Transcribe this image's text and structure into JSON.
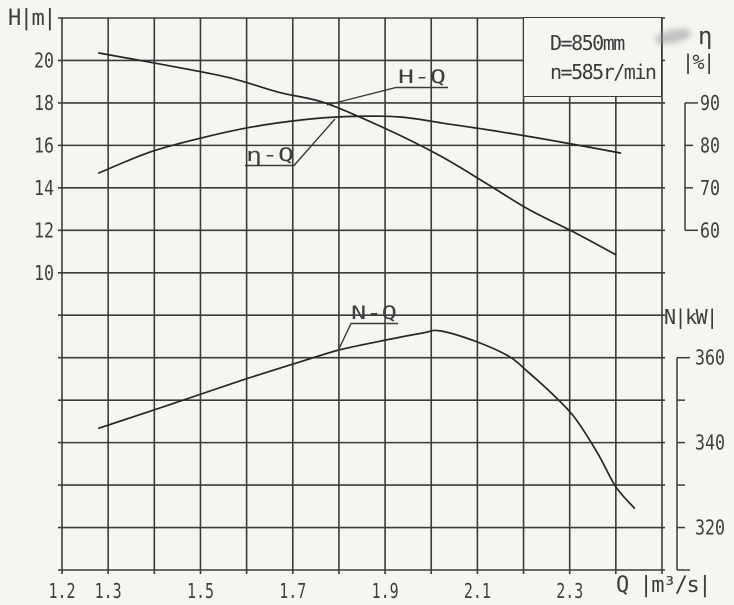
{
  "page": {
    "background": "#f6f5f2"
  },
  "axis_labels": {
    "head": "H|m|",
    "efficiency_symbol": "η",
    "efficiency_units": "|%|",
    "power": "N|kW|",
    "flow": "Q |m³/s|"
  },
  "annotation_box": {
    "line1": "D=850mm",
    "line2": "n=585r/min"
  },
  "colors": {
    "grid": "#3b3b3b",
    "curve": "#262626",
    "text": "#3f3f3f",
    "background": "#f6f5f2"
  },
  "chart_data": {
    "type": "line",
    "title": "",
    "xlabel": "Q [m³/s]",
    "x_range": [
      1.2,
      2.5
    ],
    "x_grid_step": 0.1,
    "x_tick_labels": [
      "1.2",
      "1.3",
      "1.5",
      "1.7",
      "1.9",
      "2.1",
      "2.3"
    ],
    "grid": true,
    "legend": "labels-on-chart",
    "y_axes": [
      {
        "id": "H",
        "label": "H [m]",
        "side": "left",
        "tick_labels": [
          "20",
          "18",
          "16",
          "14",
          "12",
          "10"
        ],
        "grid_step_value": 2
      },
      {
        "id": "eta",
        "label": "η [%]",
        "side": "right",
        "tick_labels": [
          "90",
          "80",
          "70",
          "60"
        ],
        "grid_step_value": 10
      },
      {
        "id": "N",
        "label": "N [kW]",
        "side": "right",
        "tick_labels": [
          "360",
          "340",
          "320"
        ],
        "grid_step_value": 10
      }
    ],
    "series": [
      {
        "name": "H-Q",
        "axis": "H",
        "points": [
          [
            1.28,
            20.35
          ],
          [
            1.42,
            19.8
          ],
          [
            1.56,
            19.2
          ],
          [
            1.67,
            18.5
          ],
          [
            1.77,
            18.0
          ],
          [
            1.9,
            16.8
          ],
          [
            2.02,
            15.5
          ],
          [
            2.12,
            14.2
          ],
          [
            2.21,
            13.0
          ],
          [
            2.31,
            11.9
          ],
          [
            2.4,
            10.85
          ]
        ]
      },
      {
        "name": "η-Q",
        "axis": "eta",
        "points": [
          [
            1.28,
            73.5
          ],
          [
            1.39,
            78.4
          ],
          [
            1.5,
            81.7
          ],
          [
            1.61,
            84.3
          ],
          [
            1.72,
            86.0
          ],
          [
            1.82,
            86.8
          ],
          [
            1.93,
            86.7
          ],
          [
            2.04,
            85.0
          ],
          [
            2.15,
            83.2
          ],
          [
            2.28,
            80.8
          ],
          [
            2.41,
            78.2
          ]
        ]
      },
      {
        "name": "N-Q",
        "axis": "N",
        "points": [
          [
            1.28,
            343.4
          ],
          [
            1.43,
            348.8
          ],
          [
            1.59,
            354.7
          ],
          [
            1.73,
            359.5
          ],
          [
            1.8,
            361.8
          ],
          [
            1.89,
            363.9
          ],
          [
            1.98,
            365.8
          ],
          [
            2.02,
            366.3
          ],
          [
            2.1,
            363.7
          ],
          [
            2.17,
            360.2
          ],
          [
            2.21,
            356.6
          ],
          [
            2.26,
            351.7
          ],
          [
            2.31,
            346.0
          ],
          [
            2.36,
            337.6
          ],
          [
            2.4,
            329.6
          ],
          [
            2.44,
            324.6
          ]
        ]
      }
    ],
    "annotations": [
      "D=850mm",
      "n=585r/min"
    ]
  }
}
